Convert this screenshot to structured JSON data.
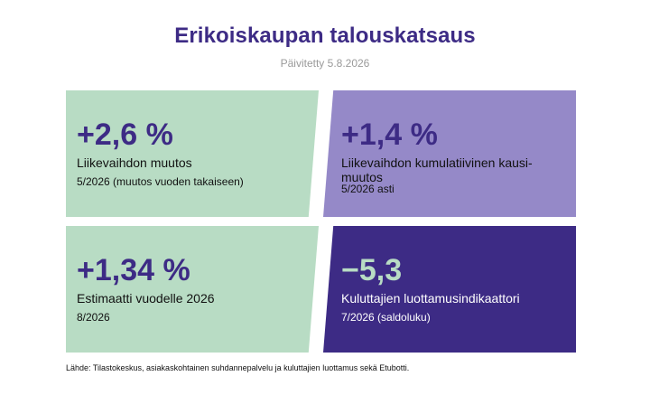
{
  "header": {
    "title": "Erikoiskaupan talouskatsaus",
    "updated": "Päivitetty 5.8.2026"
  },
  "cards": [
    {
      "value": "+2,6 %",
      "label": "Liikevaihdon muutos",
      "note": "5/2026 (muutos vuoden takaiseen)",
      "color": "#b8dcc4"
    },
    {
      "value": "+1,4 %",
      "label": "Liikevaihdon kumulatiivinen kausi-muutos",
      "note": "5/2026 asti",
      "color": "#9589c8"
    },
    {
      "value": "+1,34 %",
      "label": "Estimaatti vuodelle 2026",
      "note": "8/2026",
      "color": "#b8dcc4"
    },
    {
      "value": "−5,3",
      "label": "Kuluttajien luottamusindikaattori",
      "note": "7/2026 (saldoluku)",
      "color": "#3d2b85"
    }
  ],
  "footer": {
    "source": "Lähde: Tilastokeskus, asiakaskohtainen suhdannepalvelu ja kuluttajien luottamus sekä Etubotti."
  },
  "colors": {
    "accent": "#3d2b85",
    "green": "#b8dcc4",
    "lavender": "#9589c8"
  }
}
